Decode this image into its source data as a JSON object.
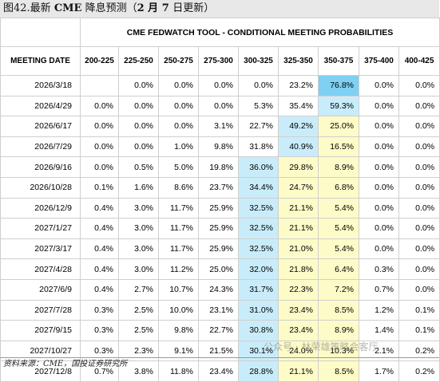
{
  "header": {
    "prefix": "图42.最新 ",
    "bold": "CME",
    "suffix": " 降息预测（",
    "bold2": "2 月 7 ",
    "suffix2": "日更新）"
  },
  "table": {
    "title": "CME FEDWATCH TOOL - CONDITIONAL MEETING PROBABILITIES",
    "columns": [
      "MEETING DATE",
      "200-225",
      "225-250",
      "250-275",
      "275-300",
      "300-325",
      "325-350",
      "350-375",
      "375-400",
      "400-425"
    ],
    "rows": [
      [
        "2026/3/18",
        "",
        "0.0%",
        "0.0%",
        "0.0%",
        "0.0%",
        "23.2%",
        "76.8%",
        "0.0%",
        "0.0%"
      ],
      [
        "2026/4/29",
        "0.0%",
        "0.0%",
        "0.0%",
        "0.0%",
        "5.3%",
        "35.4%",
        "59.3%",
        "0.0%",
        "0.0%"
      ],
      [
        "2026/6/17",
        "0.0%",
        "0.0%",
        "0.0%",
        "3.1%",
        "22.7%",
        "49.2%",
        "25.0%",
        "0.0%",
        "0.0%"
      ],
      [
        "2026/7/29",
        "0.0%",
        "0.0%",
        "1.0%",
        "9.8%",
        "31.8%",
        "40.9%",
        "16.5%",
        "0.0%",
        "0.0%"
      ],
      [
        "2026/9/16",
        "0.0%",
        "0.5%",
        "5.0%",
        "19.8%",
        "36.0%",
        "29.8%",
        "8.9%",
        "0.0%",
        "0.0%"
      ],
      [
        "2026/10/28",
        "0.1%",
        "1.6%",
        "8.6%",
        "23.7%",
        "34.4%",
        "24.7%",
        "6.8%",
        "0.0%",
        "0.0%"
      ],
      [
        "2026/12/9",
        "0.4%",
        "3.0%",
        "11.7%",
        "25.9%",
        "32.5%",
        "21.1%",
        "5.4%",
        "0.0%",
        "0.0%"
      ],
      [
        "2027/1/27",
        "0.4%",
        "3.0%",
        "11.7%",
        "25.9%",
        "32.5%",
        "21.1%",
        "5.4%",
        "0.0%",
        "0.0%"
      ],
      [
        "2027/3/17",
        "0.4%",
        "3.0%",
        "11.7%",
        "25.9%",
        "32.5%",
        "21.0%",
        "5.4%",
        "0.0%",
        "0.0%"
      ],
      [
        "2027/4/28",
        "0.4%",
        "3.0%",
        "11.2%",
        "25.0%",
        "32.0%",
        "21.8%",
        "6.4%",
        "0.3%",
        "0.0%"
      ],
      [
        "2027/6/9",
        "0.4%",
        "2.7%",
        "10.7%",
        "24.3%",
        "31.7%",
        "22.3%",
        "7.2%",
        "0.7%",
        "0.0%"
      ],
      [
        "2027/7/28",
        "0.3%",
        "2.5%",
        "10.0%",
        "23.1%",
        "31.0%",
        "23.4%",
        "8.5%",
        "1.2%",
        "0.1%"
      ],
      [
        "2027/9/15",
        "0.3%",
        "2.5%",
        "9.8%",
        "22.7%",
        "30.8%",
        "23.4%",
        "8.9%",
        "1.4%",
        "0.1%"
      ],
      [
        "2027/10/27",
        "0.3%",
        "2.3%",
        "9.1%",
        "21.5%",
        "30.1%",
        "24.0%",
        "10.3%",
        "2.1%",
        "0.2%"
      ],
      [
        "2027/12/8",
        "0.7%",
        "3.8%",
        "11.8%",
        "23.4%",
        "28.8%",
        "21.1%",
        "8.5%",
        "1.7%",
        "0.2%"
      ]
    ],
    "highlights": [
      [
        null,
        null,
        null,
        null,
        null,
        null,
        null,
        "bs",
        null,
        null
      ],
      [
        null,
        null,
        null,
        null,
        null,
        null,
        null,
        "b",
        null,
        null
      ],
      [
        null,
        null,
        null,
        null,
        null,
        null,
        "b",
        "y",
        null,
        null
      ],
      [
        null,
        null,
        null,
        null,
        null,
        null,
        "b",
        "y",
        null,
        null
      ],
      [
        null,
        null,
        null,
        null,
        null,
        "b",
        "y",
        "y",
        null,
        null
      ],
      [
        null,
        null,
        null,
        null,
        null,
        "b",
        "y",
        "y",
        null,
        null
      ],
      [
        null,
        null,
        null,
        null,
        null,
        "b",
        "y",
        "y",
        null,
        null
      ],
      [
        null,
        null,
        null,
        null,
        null,
        "b",
        "y",
        "y",
        null,
        null
      ],
      [
        null,
        null,
        null,
        null,
        null,
        "b",
        "y",
        "y",
        null,
        null
      ],
      [
        null,
        null,
        null,
        null,
        null,
        "b",
        "y",
        "y",
        null,
        null
      ],
      [
        null,
        null,
        null,
        null,
        null,
        "b",
        "y",
        "y",
        null,
        null
      ],
      [
        null,
        null,
        null,
        null,
        null,
        "b",
        "y",
        "y",
        null,
        null
      ],
      [
        null,
        null,
        null,
        null,
        null,
        "b",
        "y",
        "y",
        null,
        null
      ],
      [
        null,
        null,
        null,
        null,
        null,
        "b",
        "y",
        "y",
        null,
        null
      ],
      [
        null,
        null,
        null,
        null,
        null,
        "b",
        "y",
        "y",
        null,
        null
      ]
    ]
  },
  "footer": "资料来源：CME，国投证券研究所",
  "watermark": "公众号 · 林荣雄策略会客厅"
}
